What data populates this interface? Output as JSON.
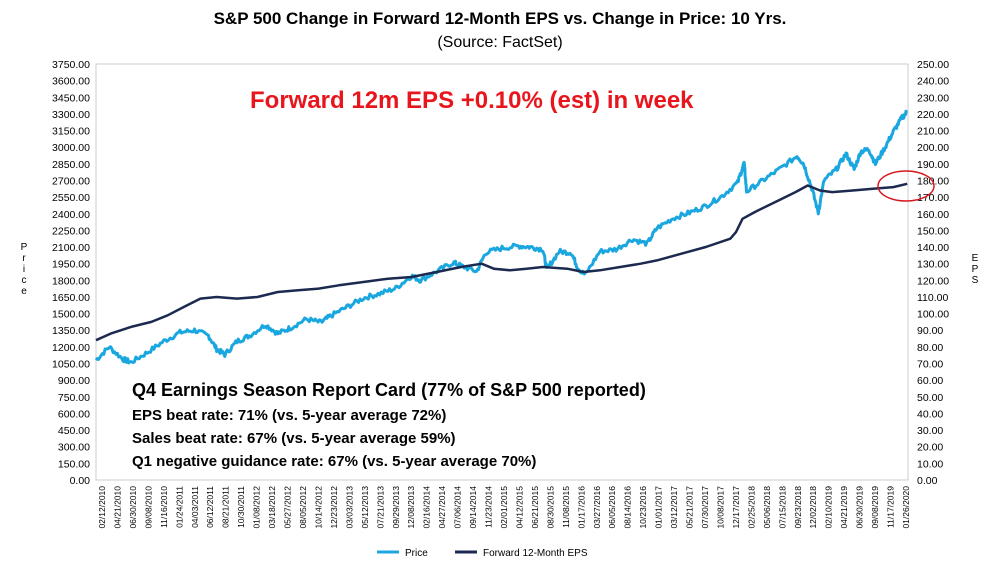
{
  "chart_data": {
    "type": "line",
    "title": "S&P 500 Change in Forward 12-Month EPS vs. Change in Price: 10 Yrs.",
    "subtitle": "(Source: FactSet)",
    "ylabel_left": "Price",
    "ylabel_right": "EPS",
    "ylim_left": [
      0,
      3750
    ],
    "ylim_right": [
      0,
      250
    ],
    "yticks_left": [
      "0.00",
      "150.00",
      "300.00",
      "450.00",
      "600.00",
      "750.00",
      "900.00",
      "1050.00",
      "1200.00",
      "1350.00",
      "1500.00",
      "1650.00",
      "1800.00",
      "1950.00",
      "2100.00",
      "2250.00",
      "2400.00",
      "2550.00",
      "2700.00",
      "2850.00",
      "3000.00",
      "3150.00",
      "3300.00",
      "3450.00",
      "3600.00",
      "3750.00"
    ],
    "yticks_right": [
      "0.00",
      "10.00",
      "20.00",
      "30.00",
      "40.00",
      "50.00",
      "60.00",
      "70.00",
      "80.00",
      "90.00",
      "100.00",
      "110.00",
      "120.00",
      "130.00",
      "140.00",
      "150.00",
      "160.00",
      "170.00",
      "180.00",
      "190.00",
      "200.00",
      "210.00",
      "220.00",
      "230.00",
      "240.00",
      "250.00"
    ],
    "xticks": [
      "02/12/2010",
      "04/21/2010",
      "06/30/2010",
      "09/08/2010",
      "11/16/2010",
      "01/24/2011",
      "04/03/2011",
      "06/12/2011",
      "08/21/2011",
      "10/30/2011",
      "01/08/2012",
      "03/18/2012",
      "05/27/2012",
      "08/05/2012",
      "10/14/2012",
      "12/23/2012",
      "03/03/2013",
      "05/12/2013",
      "07/21/2013",
      "09/29/2013",
      "12/08/2013",
      "02/16/2014",
      "04/27/2014",
      "07/06/2014",
      "09/14/2014",
      "11/23/2014",
      "02/01/2015",
      "04/12/2015",
      "06/21/2015",
      "08/30/2015",
      "11/08/2015",
      "01/17/2016",
      "03/27/2016",
      "06/05/2016",
      "08/14/2016",
      "10/23/2016",
      "01/01/2017",
      "03/12/2017",
      "05/21/2017",
      "07/30/2017",
      "10/08/2017",
      "12/17/2017",
      "02/25/2018",
      "05/06/2018",
      "07/15/2018",
      "09/23/2018",
      "12/02/2018",
      "02/10/2019",
      "04/21/2019",
      "06/30/2019",
      "09/08/2019",
      "11/17/2019",
      "01/26/2020"
    ],
    "series": [
      {
        "name": "Price",
        "color": "#1aa7e0",
        "axis": "left",
        "points": [
          [
            2010.12,
            1080
          ],
          [
            2010.28,
            1200
          ],
          [
            2010.45,
            1090
          ],
          [
            2010.55,
            1060
          ],
          [
            2010.75,
            1150
          ],
          [
            2010.95,
            1250
          ],
          [
            2011.15,
            1330
          ],
          [
            2011.33,
            1350
          ],
          [
            2011.5,
            1300
          ],
          [
            2011.6,
            1180
          ],
          [
            2011.7,
            1130
          ],
          [
            2011.85,
            1250
          ],
          [
            2012.0,
            1300
          ],
          [
            2012.2,
            1400
          ],
          [
            2012.35,
            1320
          ],
          [
            2012.5,
            1370
          ],
          [
            2012.7,
            1450
          ],
          [
            2012.88,
            1420
          ],
          [
            2013.0,
            1480
          ],
          [
            2013.2,
            1560
          ],
          [
            2013.4,
            1640
          ],
          [
            2013.6,
            1680
          ],
          [
            2013.8,
            1730
          ],
          [
            2013.99,
            1840
          ],
          [
            2014.1,
            1800
          ],
          [
            2014.3,
            1880
          ],
          [
            2014.5,
            1960
          ],
          [
            2014.6,
            1930
          ],
          [
            2014.79,
            1880
          ],
          [
            2014.9,
            2050
          ],
          [
            2015.1,
            2090
          ],
          [
            2015.3,
            2110
          ],
          [
            2015.45,
            2100
          ],
          [
            2015.6,
            2080
          ],
          [
            2015.65,
            1900
          ],
          [
            2015.8,
            2060
          ],
          [
            2015.95,
            2050
          ],
          [
            2016.03,
            1910
          ],
          [
            2016.12,
            1850
          ],
          [
            2016.3,
            2060
          ],
          [
            2016.5,
            2080
          ],
          [
            2016.7,
            2170
          ],
          [
            2016.88,
            2130
          ],
          [
            2017.0,
            2270
          ],
          [
            2017.2,
            2360
          ],
          [
            2017.4,
            2410
          ],
          [
            2017.6,
            2470
          ],
          [
            2017.8,
            2560
          ],
          [
            2017.99,
            2680
          ],
          [
            2018.07,
            2860
          ],
          [
            2018.1,
            2600
          ],
          [
            2018.3,
            2700
          ],
          [
            2018.5,
            2800
          ],
          [
            2018.72,
            2920
          ],
          [
            2018.8,
            2850
          ],
          [
            2018.9,
            2630
          ],
          [
            2018.98,
            2410
          ],
          [
            2019.05,
            2700
          ],
          [
            2019.2,
            2800
          ],
          [
            2019.32,
            2940
          ],
          [
            2019.42,
            2800
          ],
          [
            2019.5,
            2960
          ],
          [
            2019.6,
            2980
          ],
          [
            2019.68,
            2850
          ],
          [
            2019.8,
            3000
          ],
          [
            2019.9,
            3140
          ],
          [
            2020.0,
            3260
          ],
          [
            2020.07,
            3320
          ]
        ]
      },
      {
        "name": "Forward 12-Month EPS",
        "color": "#1c2a50",
        "axis": "right",
        "points": [
          [
            2010.12,
            84
          ],
          [
            2010.3,
            88
          ],
          [
            2010.55,
            92
          ],
          [
            2010.8,
            95
          ],
          [
            2011.0,
            99
          ],
          [
            2011.2,
            104
          ],
          [
            2011.4,
            109
          ],
          [
            2011.6,
            110
          ],
          [
            2011.85,
            109
          ],
          [
            2012.1,
            110
          ],
          [
            2012.35,
            113
          ],
          [
            2012.6,
            114
          ],
          [
            2012.85,
            115
          ],
          [
            2013.1,
            117
          ],
          [
            2013.4,
            119
          ],
          [
            2013.7,
            121
          ],
          [
            2013.99,
            122
          ],
          [
            2014.3,
            125
          ],
          [
            2014.6,
            128
          ],
          [
            2014.85,
            130
          ],
          [
            2015.0,
            127
          ],
          [
            2015.2,
            126
          ],
          [
            2015.4,
            127
          ],
          [
            2015.6,
            128
          ],
          [
            2015.9,
            127
          ],
          [
            2016.1,
            125
          ],
          [
            2016.3,
            126
          ],
          [
            2016.55,
            128
          ],
          [
            2016.8,
            130
          ],
          [
            2017.0,
            132
          ],
          [
            2017.3,
            136
          ],
          [
            2017.6,
            140
          ],
          [
            2017.9,
            145
          ],
          [
            2017.97,
            149
          ],
          [
            2018.05,
            157
          ],
          [
            2018.2,
            161
          ],
          [
            2018.45,
            167
          ],
          [
            2018.7,
            173
          ],
          [
            2018.85,
            177
          ],
          [
            2019.0,
            174
          ],
          [
            2019.15,
            173
          ],
          [
            2019.4,
            174
          ],
          [
            2019.65,
            175
          ],
          [
            2019.9,
            176
          ],
          [
            2020.07,
            178
          ]
        ]
      }
    ],
    "annotations": {
      "highlight": "Forward 12m EPS +0.10% (est) in week",
      "report_card_title": "Q4 Earnings Season Report Card (77% of S&P 500 reported)",
      "report_card_lines": [
        "EPS beat rate: 71% (vs. 5-year average 72%)",
        "Sales beat rate: 67% (vs. 5-year average 59%)",
        "Q1 negative guidance rate: 67% (vs. 5-year average 70%)"
      ]
    },
    "legend": [
      "Price",
      "Forward 12-Month EPS"
    ],
    "legend_position": "bottom-center"
  },
  "colors": {
    "price": "#1aa7e0",
    "eps": "#1c2a50",
    "highlight_text": "#e8161c",
    "circle": "#d7171e"
  }
}
